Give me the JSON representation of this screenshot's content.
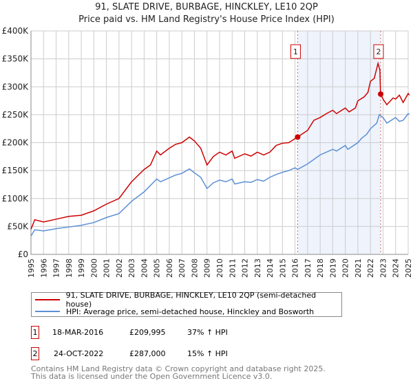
{
  "chart_data": {
    "type": "line",
    "title": "91, SLATE DRIVE, BURBAGE, HINCKLEY, LE10 2QP",
    "subtitle": "Price paid vs. HM Land Registry's House Price Index (HPI)",
    "xlim": [
      1995,
      2025
    ],
    "ylim": [
      0,
      400000
    ],
    "y_ticks": [
      {
        "v": 0,
        "label": "£0"
      },
      {
        "v": 50000,
        "label": "£50K"
      },
      {
        "v": 100000,
        "label": "£100K"
      },
      {
        "v": 150000,
        "label": "£150K"
      },
      {
        "v": 200000,
        "label": "£200K"
      },
      {
        "v": 250000,
        "label": "£250K"
      },
      {
        "v": 300000,
        "label": "£300K"
      },
      {
        "v": 350000,
        "label": "£350K"
      },
      {
        "v": 400000,
        "label": "£400K"
      }
    ],
    "x_ticks": [
      "1995",
      "1996",
      "1997",
      "1998",
      "1999",
      "2000",
      "2001",
      "2002",
      "2003",
      "2004",
      "2005",
      "2006",
      "2007",
      "2008",
      "2009",
      "2010",
      "2011",
      "2012",
      "2013",
      "2014",
      "2015",
      "2016",
      "2017",
      "2018",
      "2019",
      "2020",
      "2021",
      "2022",
      "2023",
      "2024",
      "2025"
    ],
    "grid": true,
    "series": [
      {
        "name": "91, SLATE DRIVE, BURBAGE, HINCKLEY, LE10 2QP (semi-detached house)",
        "color": "#cc0000",
        "x": [
          1995,
          1995.3,
          1996,
          1997,
          1998,
          1999,
          2000,
          2001,
          2002,
          2003,
          2004,
          2004.5,
          2005,
          2005.3,
          2006,
          2006.5,
          2007,
          2007.6,
          2008,
          2008.5,
          2009,
          2009.5,
          2010,
          2010.5,
          2011,
          2011.2,
          2012,
          2012.5,
          2013,
          2013.5,
          2014,
          2014.5,
          2015,
          2015.5,
          2016.2,
          2017,
          2017.5,
          2018,
          2018.5,
          2019,
          2019.3,
          2020,
          2020.3,
          2020.8,
          2021,
          2021.5,
          2021.8,
          2022,
          2022.3,
          2022.6,
          2022.75,
          2022.8,
          2023,
          2023.3,
          2023.8,
          2024,
          2024.3,
          2024.6,
          2025,
          2025.1
        ],
        "values": [
          45000,
          62000,
          58000,
          63000,
          68000,
          70000,
          78000,
          90000,
          100000,
          130000,
          152000,
          160000,
          185000,
          178000,
          190000,
          197000,
          200000,
          210000,
          203000,
          190000,
          160000,
          175000,
          183000,
          178000,
          185000,
          172000,
          180000,
          176000,
          183000,
          178000,
          183000,
          195000,
          199000,
          200000,
          209995,
          222000,
          240000,
          245000,
          252000,
          258000,
          252000,
          262000,
          255000,
          262000,
          275000,
          282000,
          290000,
          310000,
          315000,
          342000,
          330000,
          287000,
          278000,
          268000,
          280000,
          278000,
          285000,
          272000,
          288000,
          285000
        ]
      },
      {
        "name": "HPI: Average price, semi-detached house, Hinckley and Bosworth",
        "color": "#5b8fd4",
        "x": [
          1995,
          1995.3,
          1996,
          1997,
          1998,
          1999,
          2000,
          2001,
          2002,
          2003,
          2004,
          2005,
          2005.3,
          2006,
          2006.5,
          2007,
          2007.6,
          2008,
          2008.5,
          2009,
          2009.5,
          2010,
          2010.5,
          2011,
          2011.2,
          2012,
          2012.5,
          2013,
          2013.5,
          2014,
          2014.5,
          2015,
          2015.5,
          2016,
          2016.2,
          2017,
          2018,
          2019,
          2019.3,
          2020,
          2020.2,
          2021,
          2021.3,
          2021.7,
          2022,
          2022.5,
          2022.7,
          2023,
          2023.3,
          2024,
          2024.3,
          2024.6,
          2025,
          2025.1
        ],
        "values": [
          33000,
          44000,
          42000,
          46000,
          49000,
          52000,
          57000,
          66000,
          73000,
          95000,
          112000,
          135000,
          130000,
          137000,
          142000,
          145000,
          153000,
          146000,
          138000,
          118000,
          128000,
          133000,
          130000,
          135000,
          126000,
          130000,
          129000,
          134000,
          131000,
          138000,
          143000,
          147000,
          150000,
          155000,
          152000,
          162000,
          178000,
          188000,
          185000,
          195000,
          188000,
          200000,
          208000,
          215000,
          225000,
          235000,
          250000,
          245000,
          235000,
          245000,
          238000,
          240000,
          252000,
          250000
        ]
      }
    ],
    "sales": [
      {
        "label": "1",
        "date": "18-MAR-2016",
        "x": 2016.21,
        "price": "£209,995",
        "value": 209995,
        "hpi": "37% ↑ HPI"
      },
      {
        "label": "2",
        "date": "24-OCT-2022",
        "x": 2022.81,
        "price": "£287,000",
        "value": 287000,
        "hpi": "15% ↑ HPI"
      }
    ],
    "legend_placement": "bottom"
  },
  "footer": {
    "line1": "Contains HM Land Registry data © Crown copyright and database right 2025.",
    "line2": "This data is licensed under the Open Government Licence v3.0."
  }
}
